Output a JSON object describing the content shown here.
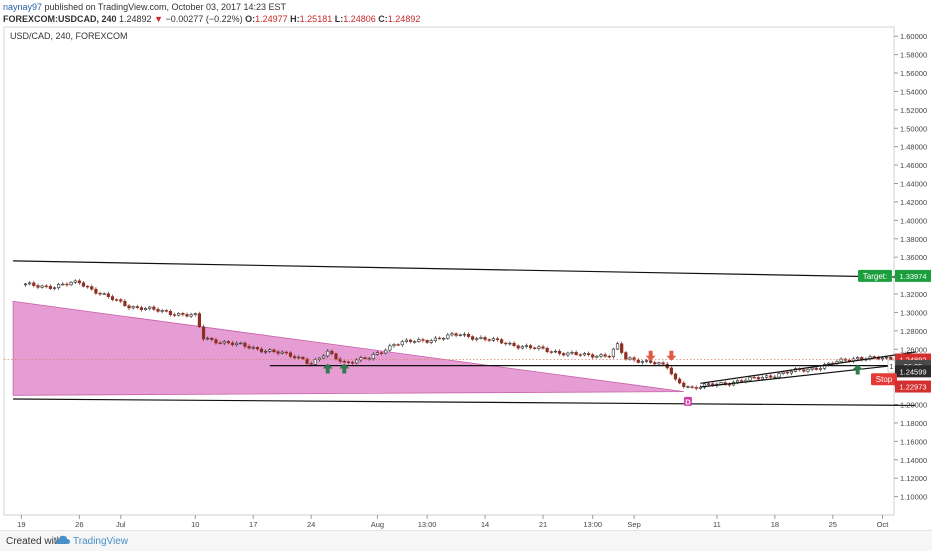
{
  "header": {
    "author": "naynay97",
    "published_text": " published on TradingView.com, October 03, 2017 14:23 EST",
    "symbol": "FOREXCOM:USDCAD, 240",
    "last": "1.24892",
    "change_arrow": "▼",
    "change": "−0.00277 (−0.22%)",
    "o_label": "O:",
    "o_value": "1.24977",
    "h_label": "H:",
    "h_value": "1.25181",
    "l_label": "L:",
    "l_value": "1.24806",
    "c_label": "C:",
    "c_value": "1.24892"
  },
  "footer": {
    "created_with": "Created with",
    "brand": "TradingView",
    "logo_icon": "cloud-logo-icon"
  },
  "colors": {
    "candle_up": "#2a2a2a",
    "candle_down": "#8b2f22",
    "wedge_fill": "#e08ccb",
    "buy_arrow": "#2e7d4f",
    "sell_arrow": "#e05a47",
    "target_badge": "#1b9e3e",
    "stop_badge": "#e53935",
    "price_badge": "#d32f2f",
    "marker": "#d43ea6"
  },
  "chart_data": {
    "type": "candlestick",
    "title": "USD/CAD, 240, FOREXCOM",
    "ylim": [
      1.08,
      1.61
    ],
    "y_ticks": [
      "1.60000",
      "1.58000",
      "1.56000",
      "1.54000",
      "1.52000",
      "1.50000",
      "1.48000",
      "1.46000",
      "1.44000",
      "1.42000",
      "1.40000",
      "1.38000",
      "1.36000",
      "1.34000",
      "1.32000",
      "1.30000",
      "1.28000",
      "1.26000",
      "1.24000",
      "1.22000",
      "1.20000",
      "1.18000",
      "1.16000",
      "1.14000",
      "1.12000",
      "1.10000"
    ],
    "x_ticks": [
      {
        "label": "19",
        "day": 0
      },
      {
        "label": "26",
        "day": 7
      },
      {
        "label": "Jul",
        "day": 12
      },
      {
        "label": "10",
        "day": 21
      },
      {
        "label": "17",
        "day": 28
      },
      {
        "label": "24",
        "day": 35
      },
      {
        "label": "Aug",
        "day": 43
      },
      {
        "label": "13:00",
        "day": 49
      },
      {
        "label": "14",
        "day": 56
      },
      {
        "label": "21",
        "day": 63
      },
      {
        "label": "13:00",
        "day": 69
      },
      {
        "label": "Sep",
        "day": 74
      },
      {
        "label": "11",
        "day": 84
      },
      {
        "label": "18",
        "day": 91
      },
      {
        "label": "25",
        "day": 98
      },
      {
        "label": "Oct",
        "day": 104
      }
    ],
    "price_path": [
      [
        0,
        1.33
      ],
      [
        4,
        1.328
      ],
      [
        7,
        1.333
      ],
      [
        10,
        1.318
      ],
      [
        13,
        1.307
      ],
      [
        17,
        1.301
      ],
      [
        21,
        1.296
      ],
      [
        22,
        1.272
      ],
      [
        26,
        1.265
      ],
      [
        30,
        1.258
      ],
      [
        34,
        1.25
      ],
      [
        35,
        1.244
      ],
      [
        37,
        1.256
      ],
      [
        39,
        1.246
      ],
      [
        42,
        1.25
      ],
      [
        45,
        1.266
      ],
      [
        49,
        1.27
      ],
      [
        53,
        1.276
      ],
      [
        56,
        1.271
      ],
      [
        60,
        1.264
      ],
      [
        64,
        1.258
      ],
      [
        68,
        1.253
      ],
      [
        71,
        1.254
      ],
      [
        72,
        1.264
      ],
      [
        73,
        1.249
      ],
      [
        76,
        1.247
      ],
      [
        78,
        1.24
      ],
      [
        79,
        1.226
      ],
      [
        81,
        1.218
      ],
      [
        84,
        1.222
      ],
      [
        88,
        1.227
      ],
      [
        92,
        1.234
      ],
      [
        96,
        1.24
      ],
      [
        99,
        1.247
      ],
      [
        101,
        1.251
      ],
      [
        105,
        1.249
      ]
    ],
    "trendlines": [
      {
        "from": [
          -1,
          1.356
        ],
        "to": [
          108,
          1.338
        ]
      },
      {
        "from": [
          -1,
          1.206
        ],
        "to": [
          108,
          1.199
        ]
      },
      {
        "from": [
          30,
          1.2422
        ],
        "to": [
          108,
          1.2422
        ]
      },
      {
        "from": [
          82,
          1.219
        ],
        "to": [
          108,
          1.245
        ]
      },
      {
        "from": [
          82,
          1.223
        ],
        "to": [
          108,
          1.257
        ]
      }
    ],
    "wedge": [
      [
        -1,
        1.312
      ],
      [
        -1,
        1.21
      ],
      [
        80,
        1.214
      ]
    ],
    "resistance_dotted": 1.2489,
    "buy_signals": [
      {
        "day": 37,
        "price": 1.238
      },
      {
        "day": 39,
        "price": 1.238
      },
      {
        "day": 101,
        "price": 1.237
      }
    ],
    "sell_signals": [
      {
        "day": 76,
        "price": 1.254
      },
      {
        "day": 78.5,
        "price": 1.254
      }
    ],
    "low_marker": {
      "day": 80.5,
      "price": 1.211,
      "label": "D"
    },
    "target": {
      "label": "Target:",
      "value": "1.33974",
      "price": 1.3397
    },
    "last_price": {
      "value": "1.24892",
      "price": 1.2489
    },
    "countdown": {
      "prefix": "1",
      "value": "36:25",
      "price": 1.2418
    },
    "level_1": {
      "value": "1.24599",
      "price": 1.236
    },
    "stop": {
      "label": "Stop",
      "price": 1.2275
    },
    "level_2": {
      "value": "1.22973",
      "price": 1.2195
    }
  }
}
